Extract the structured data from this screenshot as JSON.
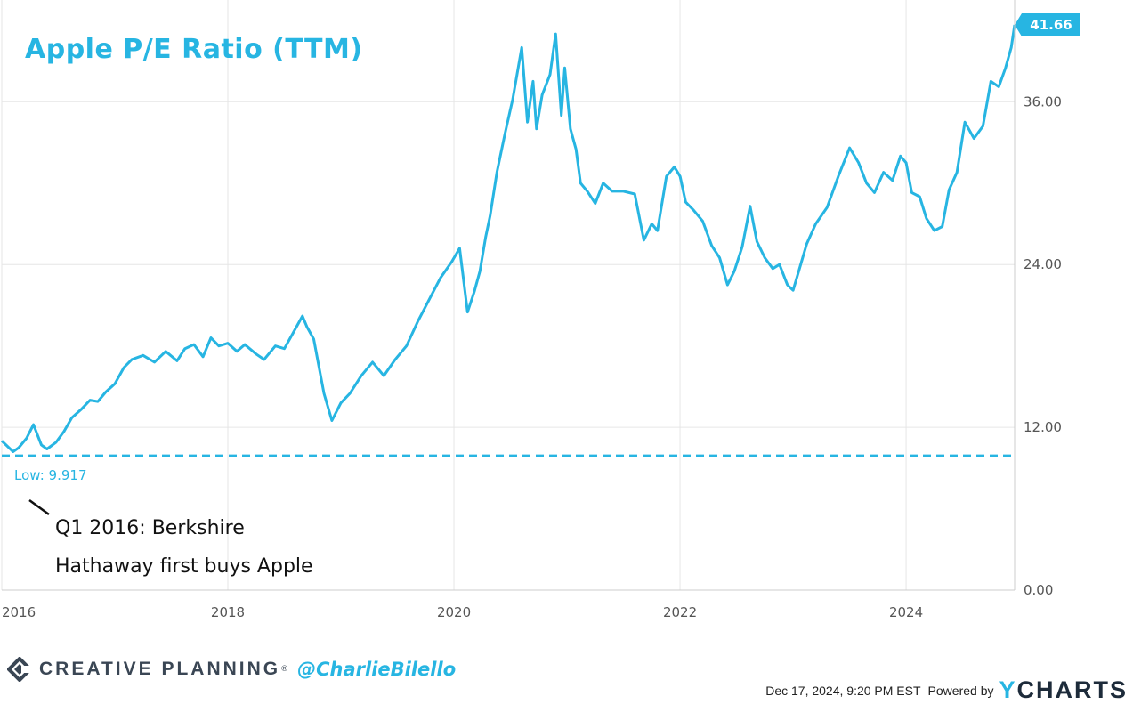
{
  "chart_data": {
    "type": "line",
    "title": "Apple P/E Ratio (TTM)",
    "xlabel": "",
    "ylabel": "",
    "xlim": [
      2016.0,
      2024.96
    ],
    "ylim": [
      0,
      43.5
    ],
    "x_ticks": [
      2016,
      2018,
      2020,
      2022,
      2024
    ],
    "x_tick_labels": [
      "2016",
      "2018",
      "2020",
      "2022",
      "2024"
    ],
    "y_ticks": [
      0,
      12,
      24,
      36
    ],
    "y_tick_labels": [
      "0.00",
      "12.00",
      "24.00",
      "36.00"
    ],
    "grid": true,
    "series": [
      {
        "name": "Apple P/E Ratio (TTM)",
        "color": "#27b5e2",
        "last_value_label": "41.66",
        "x": [
          2016.0,
          2016.1,
          2016.15,
          2016.22,
          2016.28,
          2016.35,
          2016.4,
          2016.48,
          2016.55,
          2016.62,
          2016.7,
          2016.78,
          2016.85,
          2016.92,
          2017.0,
          2017.08,
          2017.15,
          2017.25,
          2017.35,
          2017.45,
          2017.55,
          2017.62,
          2017.7,
          2017.78,
          2017.85,
          2017.92,
          2018.0,
          2018.08,
          2018.15,
          2018.25,
          2018.32,
          2018.42,
          2018.5,
          2018.58,
          2018.66,
          2018.7,
          2018.76,
          2018.85,
          2018.92,
          2019.0,
          2019.08,
          2019.18,
          2019.28,
          2019.38,
          2019.48,
          2019.58,
          2019.68,
          2019.78,
          2019.88,
          2019.98,
          2020.05,
          2020.12,
          2020.18,
          2020.23,
          2020.28,
          2020.32,
          2020.38,
          2020.45,
          2020.52,
          2020.6,
          2020.65,
          2020.7,
          2020.73,
          2020.78,
          2020.85,
          2020.9,
          2020.95,
          2020.98,
          2021.03,
          2021.08,
          2021.12,
          2021.18,
          2021.25,
          2021.32,
          2021.4,
          2021.5,
          2021.6,
          2021.68,
          2021.75,
          2021.8,
          2021.88,
          2021.95,
          2022.0,
          2022.05,
          2022.12,
          2022.2,
          2022.28,
          2022.35,
          2022.42,
          2022.48,
          2022.55,
          2022.62,
          2022.68,
          2022.75,
          2022.82,
          2022.88,
          2022.95,
          2023.0,
          2023.05,
          2023.12,
          2023.2,
          2023.3,
          2023.4,
          2023.5,
          2023.58,
          2023.65,
          2023.72,
          2023.8,
          2023.88,
          2023.95,
          2024.0,
          2024.05,
          2024.12,
          2024.18,
          2024.25,
          2024.32,
          2024.38,
          2024.45,
          2024.52,
          2024.6,
          2024.68,
          2024.75,
          2024.82,
          2024.88,
          2024.93,
          2024.96
        ],
        "y": [
          11.0,
          10.2,
          10.5,
          11.2,
          12.2,
          10.7,
          10.4,
          10.9,
          11.7,
          12.7,
          13.3,
          14.0,
          13.9,
          14.6,
          15.2,
          16.4,
          17.0,
          17.3,
          16.8,
          17.6,
          16.9,
          17.8,
          18.1,
          17.2,
          18.6,
          18.0,
          18.2,
          17.6,
          18.1,
          17.4,
          17.0,
          18.0,
          17.8,
          19.0,
          20.2,
          19.4,
          18.5,
          14.5,
          12.5,
          13.8,
          14.5,
          15.8,
          16.8,
          15.8,
          17.0,
          18.0,
          19.8,
          21.4,
          23.0,
          24.2,
          25.2,
          20.5,
          22.0,
          23.5,
          26.0,
          27.6,
          30.8,
          33.6,
          36.2,
          40.0,
          34.5,
          37.5,
          34.0,
          36.5,
          38.0,
          41.0,
          35.0,
          38.5,
          34.0,
          32.5,
          30.0,
          29.4,
          28.5,
          30.0,
          29.4,
          29.4,
          29.2,
          25.8,
          27.0,
          26.5,
          30.5,
          31.2,
          30.5,
          28.6,
          28.0,
          27.2,
          25.4,
          24.5,
          22.5,
          23.5,
          25.3,
          28.3,
          25.7,
          24.5,
          23.7,
          24.0,
          22.5,
          22.1,
          23.5,
          25.5,
          27.0,
          28.2,
          30.5,
          32.6,
          31.5,
          30.0,
          29.3,
          30.8,
          30.2,
          32.0,
          31.5,
          29.3,
          29.0,
          27.4,
          26.5,
          26.8,
          29.5,
          30.8,
          34.5,
          33.3,
          34.2,
          37.5,
          37.1,
          38.5,
          40.0,
          41.66
        ]
      }
    ],
    "reference_lines": [
      {
        "name": "low",
        "value": 9.917,
        "label": "Low: 9.917",
        "style": "dashed",
        "color": "#27b5e2"
      }
    ],
    "annotations": [
      {
        "text_line1": "Q1 2016: Berkshire",
        "text_line2": "Hathaway first buys Apple"
      }
    ]
  },
  "footer": {
    "brand": "CREATIVE PLANNING",
    "brand_mark": "®",
    "handle": "@CharlieBilello",
    "timestamp": "Dec 17, 2024, 9:20 PM EST",
    "powered_by": "Powered by",
    "ycharts_y": "Y",
    "ycharts_rest": "CHARTS"
  },
  "colors": {
    "accent": "#27b5e2",
    "grid": "#e6e6e6",
    "axis_text": "#555555",
    "brand_dark": "#3a4654"
  }
}
